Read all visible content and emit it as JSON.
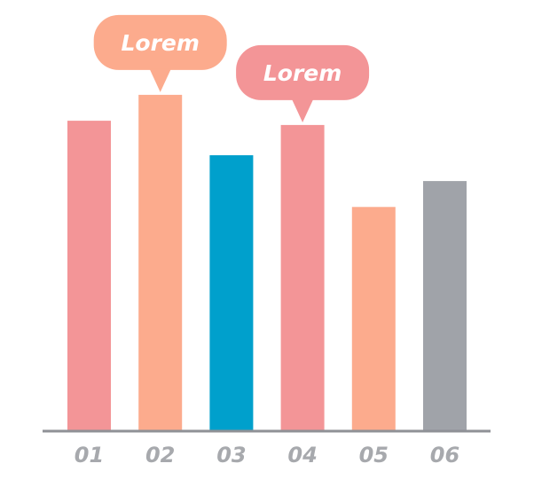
{
  "chart_data": {
    "type": "bar",
    "categories": [
      "01",
      "02",
      "03",
      "04",
      "05",
      "06"
    ],
    "values": [
      72,
      78,
      64,
      71,
      52,
      58
    ],
    "colors": [
      "#f39597",
      "#fcab8d",
      "#00a0cc",
      "#f39597",
      "#fcab8d",
      "#a0a3a9"
    ],
    "ylim": [
      0,
      100
    ],
    "grid": false,
    "legend": "none",
    "axis_color": "#8f9196",
    "tick_label_color": "#a7a9ad",
    "annotations": [
      {
        "category": "02",
        "text": "Lorem",
        "color": "#fcab8d"
      },
      {
        "category": "04",
        "text": "Lorem",
        "color": "#f39597"
      }
    ]
  }
}
